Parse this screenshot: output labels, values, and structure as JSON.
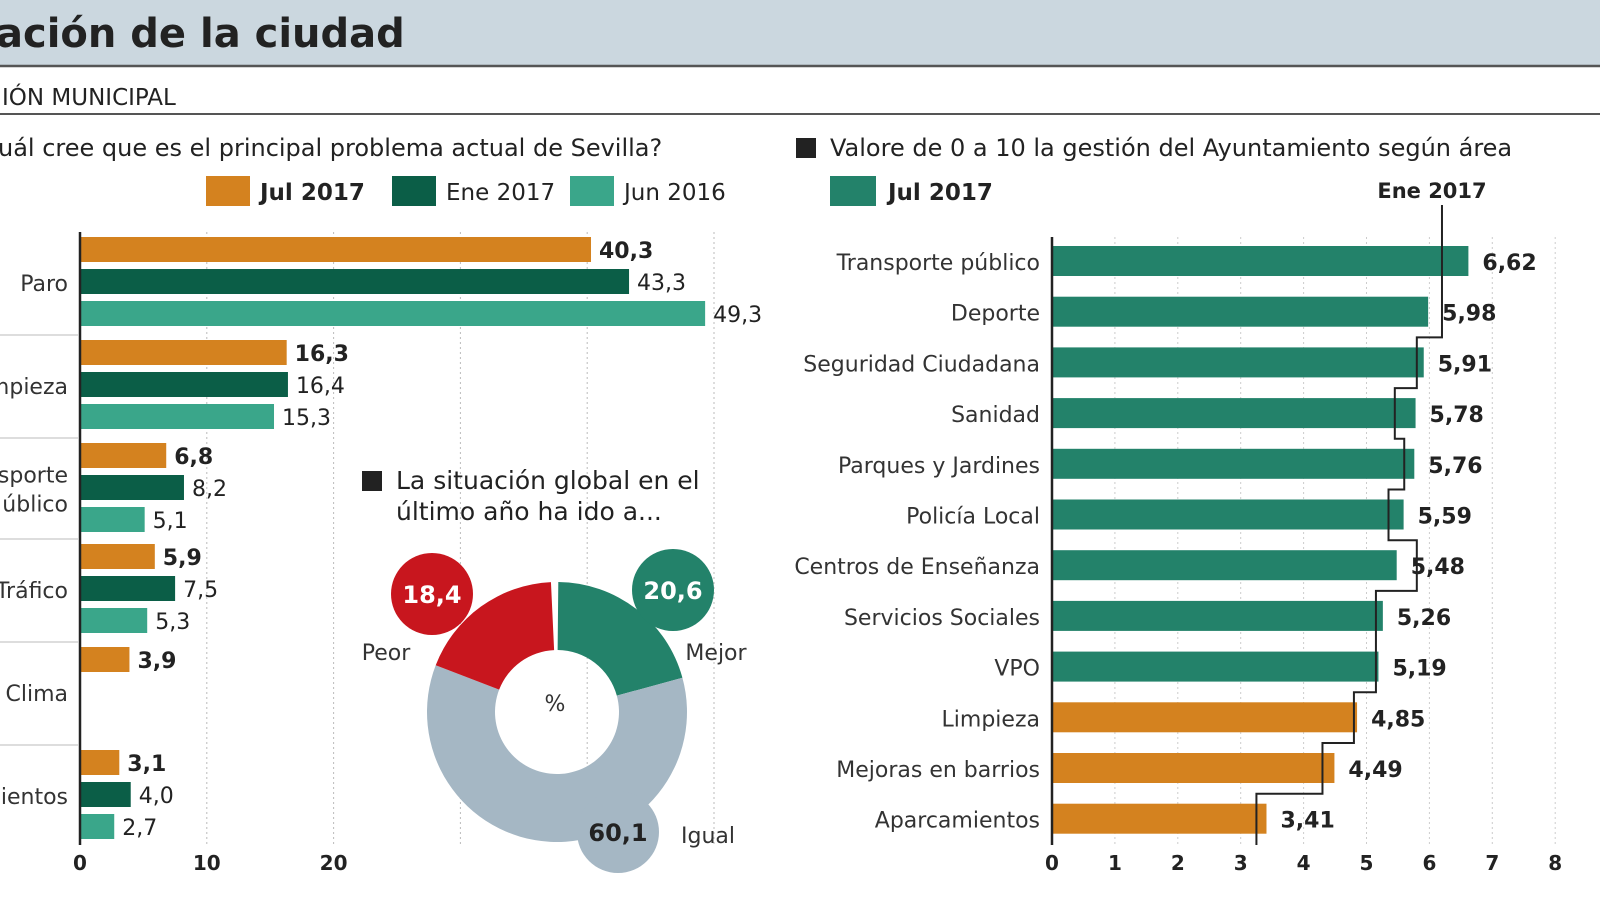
{
  "header": {
    "title": "ación de la ciudad",
    "section": "IÓN MUNICIPAL",
    "band_color": "#cbd7df"
  },
  "colors": {
    "orange": "#d4821f",
    "dark_green": "#0b5e47",
    "teal": "#3aa68a",
    "green": "#23826a",
    "red": "#c8161e",
    "gray": "#a5b7c4"
  },
  "chart_data": [
    {
      "type": "bar",
      "orientation": "horizontal",
      "title": "uál cree que es el principal problema actual de Sevilla?",
      "legend_position": "top",
      "categories": [
        "Paro",
        "mpieza",
        "sporte\núblico",
        "Tráfico",
        "Clima",
        "ientos"
      ],
      "series": [
        {
          "name": "Jul 2017",
          "color": "#d4821f",
          "values": [
            40.3,
            16.3,
            6.8,
            5.9,
            3.9,
            3.1
          ],
          "labels": [
            "40,3",
            "16,3",
            "6,8",
            "5,9",
            "3,9",
            "3,1"
          ]
        },
        {
          "name": "Ene 2017",
          "color": "#0b5e47",
          "values": [
            43.3,
            16.4,
            8.2,
            7.5,
            null,
            4.0
          ],
          "labels": [
            "43,3",
            "16,4",
            "8,2",
            "7,5",
            "",
            "4,0"
          ]
        },
        {
          "name": "Jun 2016",
          "color": "#3aa68a",
          "values": [
            49.3,
            15.3,
            5.1,
            5.3,
            null,
            2.7
          ],
          "labels": [
            "49,3",
            "15,3",
            "5,1",
            "5,3",
            "",
            "2,7"
          ]
        }
      ],
      "xticks": [
        "0",
        "10",
        "20"
      ],
      "xlim": [
        0,
        50
      ],
      "grid": true
    },
    {
      "type": "pie",
      "donut": true,
      "title": "La situación global en el último año ha ido a...",
      "center_label": "%",
      "slices": [
        {
          "label": "Mejor",
          "value": 20.6,
          "text": "20,6",
          "color": "#23826a"
        },
        {
          "label": "Igual",
          "value": 60.1,
          "text": "60,1",
          "color": "#a5b7c4"
        },
        {
          "label": "Peor",
          "value": 18.4,
          "text": "18,4",
          "color": "#c8161e"
        }
      ]
    },
    {
      "type": "bar",
      "orientation": "horizontal",
      "title": "Valore de 0 a 10 la gestión del Ayuntamiento según área",
      "legend": [
        {
          "name": "Jul 2017",
          "color": "#23826a"
        }
      ],
      "reference_line_label": "Ene 2017",
      "categories": [
        "Transporte público",
        "Deporte",
        "Seguridad Ciudadana",
        "Sanidad",
        "Parques y Jardines",
        "Policía Local",
        "Centros de Enseñanza",
        "Servicios Sociales",
        "VPO",
        "Limpieza",
        "Mejoras en barrios",
        "Aparcamientos"
      ],
      "values": [
        6.62,
        5.98,
        5.91,
        5.78,
        5.76,
        5.59,
        5.48,
        5.26,
        5.19,
        4.85,
        4.49,
        3.41
      ],
      "labels": [
        "6,62",
        "5,98",
        "5,91",
        "5,78",
        "5,76",
        "5,59",
        "5,48",
        "5,26",
        "5,19",
        "4,85",
        "4,49",
        "3,41"
      ],
      "bar_colors": [
        "#23826a",
        "#23826a",
        "#23826a",
        "#23826a",
        "#23826a",
        "#23826a",
        "#23826a",
        "#23826a",
        "#23826a",
        "#d4821f",
        "#d4821f",
        "#d4821f"
      ],
      "ene_2017_values": [
        6.2,
        6.2,
        5.8,
        5.45,
        5.6,
        5.35,
        5.8,
        5.15,
        5.15,
        4.8,
        4.3,
        3.25
      ],
      "xticks": [
        "0",
        "1",
        "2",
        "3",
        "4",
        "5",
        "6",
        "7",
        "8"
      ],
      "xlim": [
        0,
        8
      ],
      "grid": true
    }
  ]
}
